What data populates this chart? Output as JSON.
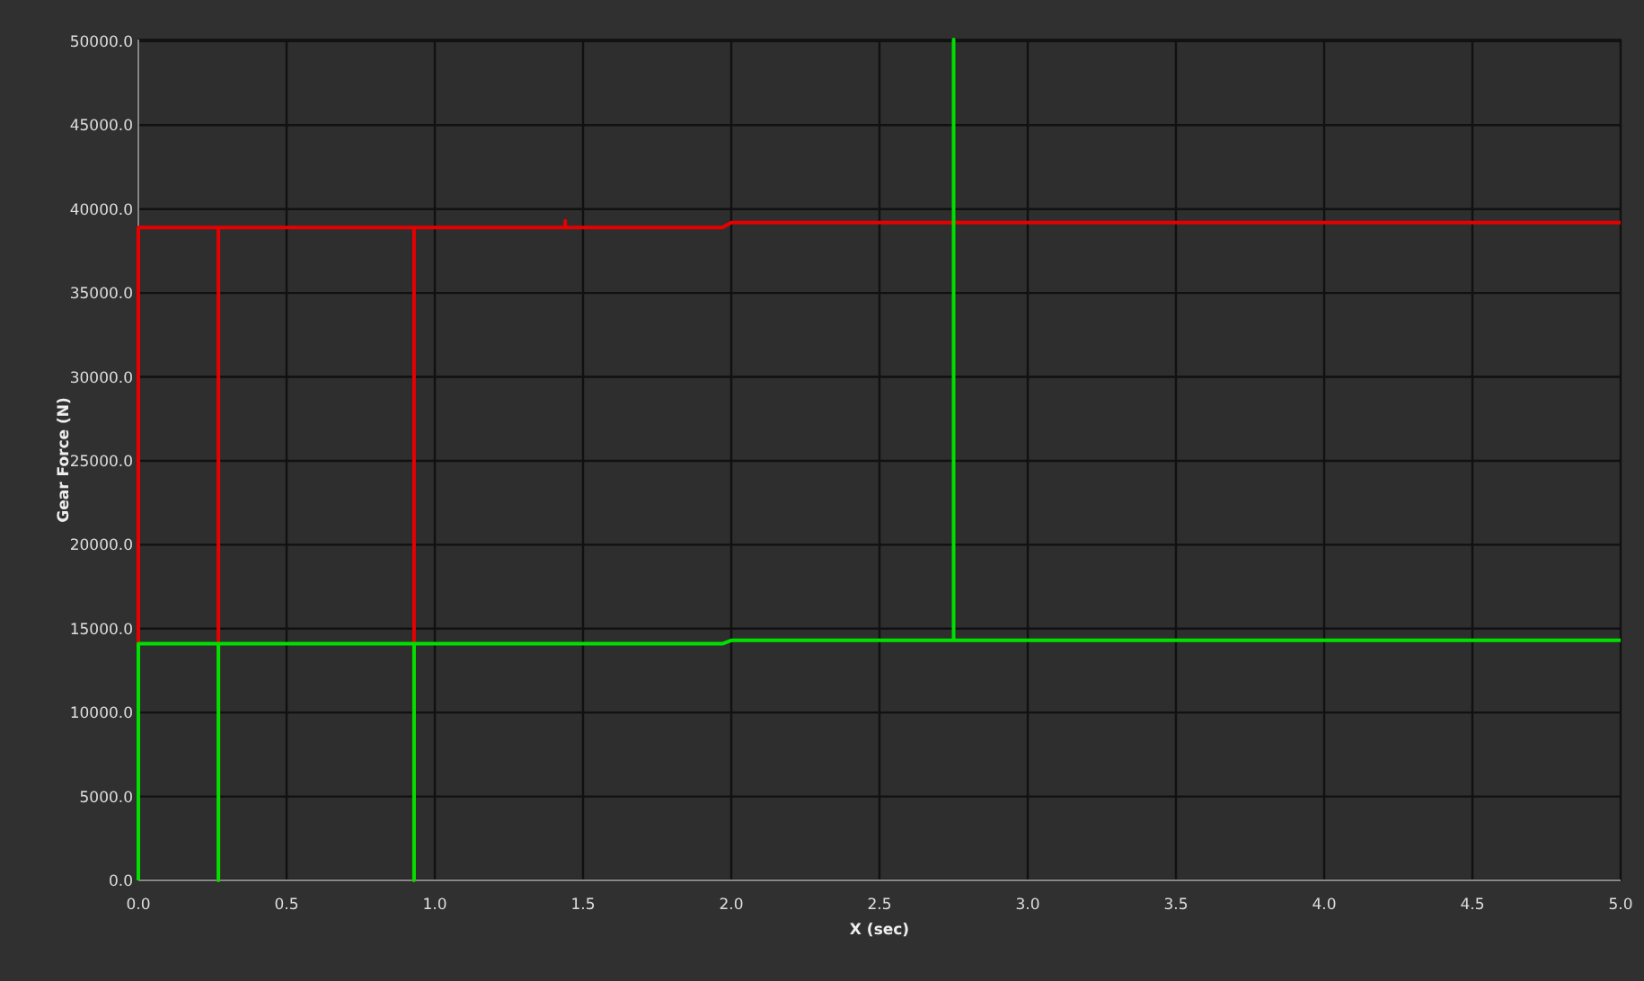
{
  "chart_data": {
    "type": "line",
    "xlabel": "X (sec)",
    "ylabel": "Gear Force (N)",
    "xlim": [
      0,
      5
    ],
    "ylim": [
      0,
      50100
    ],
    "xticks": [
      {
        "value": 0,
        "label": "0.0"
      },
      {
        "value": 0.5,
        "label": "0.5"
      },
      {
        "value": 1,
        "label": "1.0"
      },
      {
        "value": 1.5,
        "label": "1.5"
      },
      {
        "value": 2,
        "label": "2.0"
      },
      {
        "value": 2.5,
        "label": "2.5"
      },
      {
        "value": 3,
        "label": "3.0"
      },
      {
        "value": 3.5,
        "label": "3.5"
      },
      {
        "value": 4,
        "label": "4.0"
      },
      {
        "value": 4.5,
        "label": "4.5"
      },
      {
        "value": 5,
        "label": "5.0"
      }
    ],
    "yticks": [
      {
        "value": 0,
        "label": "0.0"
      },
      {
        "value": 5000,
        "label": "5000.0"
      },
      {
        "value": 10000,
        "label": "10000.0"
      },
      {
        "value": 15000,
        "label": "15000.0"
      },
      {
        "value": 20000,
        "label": "20000.0"
      },
      {
        "value": 25000,
        "label": "25000.0"
      },
      {
        "value": 30000,
        "label": "30000.0"
      },
      {
        "value": 35000,
        "label": "35000.0"
      },
      {
        "value": 40000,
        "label": "40000.0"
      },
      {
        "value": 45000,
        "label": "45000.0"
      },
      {
        "value": 50000,
        "label": "50000.0"
      }
    ],
    "grid": true,
    "marker": "none",
    "line_style": "solid",
    "series": [
      {
        "color": "#e60000",
        "x": [
          0,
          0,
          0.27,
          0.27,
          0.27,
          0.93,
          0.93,
          0.93,
          1.44,
          1.44,
          1.44,
          1.97,
          2.0,
          5.0
        ],
        "values": [
          0,
          38900,
          38900,
          0,
          38900,
          38900,
          0,
          38900,
          38900,
          39300,
          38900,
          38900,
          39200,
          39200
        ]
      },
      {
        "color": "#00e000",
        "x": [
          0,
          0,
          0.27,
          0.27,
          0.27,
          0.93,
          0.93,
          0.93,
          1.97,
          2.0,
          2.75,
          2.75,
          2.75,
          5.0
        ],
        "values": [
          0,
          14100,
          14100,
          0,
          14100,
          14100,
          0,
          14100,
          14100,
          14300,
          14300,
          50100,
          14300,
          14300
        ]
      }
    ]
  }
}
